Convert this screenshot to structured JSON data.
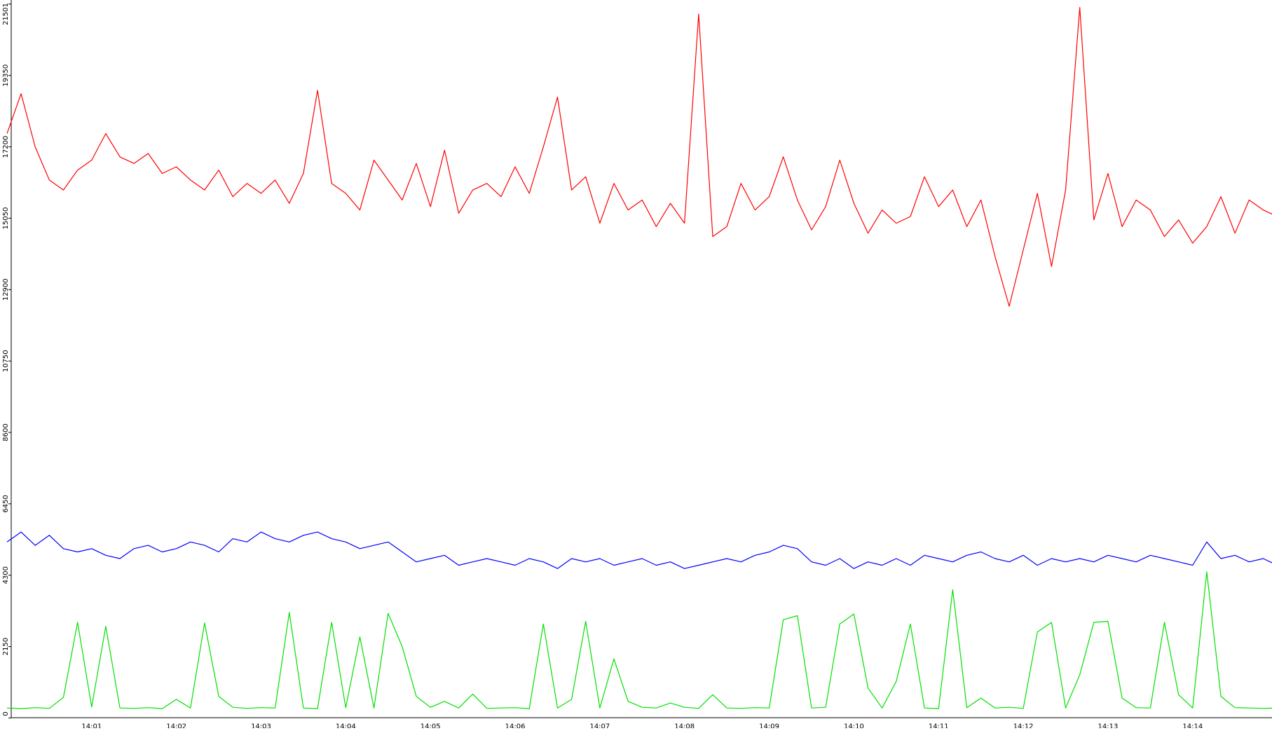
{
  "chart_data": {
    "type": "line",
    "categories": [
      null,
      null,
      null,
      null,
      null,
      null,
      "14:01",
      null,
      null,
      null,
      null,
      null,
      "14:02",
      null,
      null,
      null,
      null,
      null,
      "14:03",
      null,
      null,
      null,
      null,
      null,
      "14:04",
      null,
      null,
      null,
      null,
      null,
      "14:05",
      null,
      null,
      null,
      null,
      null,
      "14:06",
      null,
      null,
      null,
      null,
      null,
      "14:07",
      null,
      null,
      null,
      null,
      null,
      "14:08",
      null,
      null,
      null,
      null,
      null,
      "14:09",
      null,
      null,
      null,
      null,
      null,
      "14:10",
      null,
      null,
      null,
      null,
      null,
      "14:11",
      null,
      null,
      null,
      null,
      null,
      "14:12",
      null,
      null,
      null,
      null,
      null,
      "14:13",
      null,
      null,
      null,
      null,
      null,
      "14:14",
      null,
      null,
      null,
      null,
      null,
      null
    ],
    "series": [
      {
        "color": "#ff0000",
        "values": [
          17600,
          18800,
          17200,
          16200,
          15900,
          16500,
          16800,
          17600,
          16900,
          16700,
          17000,
          16400,
          16600,
          16200,
          15900,
          16500,
          15700,
          16100,
          15800,
          16200,
          15500,
          16400,
          18900,
          16100,
          15800,
          15300,
          16800,
          16200,
          15600,
          16700,
          15400,
          17100,
          15200,
          15900,
          16100,
          15700,
          16600,
          15800,
          17200,
          18700,
          15900,
          16300,
          14900,
          16100,
          15300,
          15600,
          14800,
          15500,
          14900,
          21200,
          14500,
          14800,
          16100,
          15300,
          15700,
          16900,
          15600,
          14700,
          15400,
          16800,
          15500,
          14600,
          15300,
          14900,
          15100,
          16300,
          15400,
          15900,
          14800,
          15600,
          13900,
          12400,
          14100,
          15800,
          13600,
          15900,
          21400,
          15000,
          16400,
          14800,
          15600,
          15300,
          14500,
          15000,
          14300,
          14800,
          15700,
          14600,
          15600,
          15300,
          15100
        ]
      },
      {
        "color": "#0000ff",
        "values": [
          5300,
          5600,
          5200,
          5500,
          5100,
          5000,
          5100,
          4900,
          4800,
          5100,
          5200,
          5000,
          5100,
          5300,
          5200,
          5000,
          5400,
          5300,
          5600,
          5400,
          5300,
          5500,
          5600,
          5400,
          5300,
          5100,
          5200,
          5300,
          5000,
          4700,
          4800,
          4900,
          4600,
          4700,
          4800,
          4700,
          4600,
          4800,
          4700,
          4500,
          4800,
          4700,
          4800,
          4600,
          4700,
          4800,
          4600,
          4700,
          4500,
          4600,
          4700,
          4800,
          4700,
          4900,
          5000,
          5200,
          5100,
          4700,
          4600,
          4800,
          4500,
          4700,
          4600,
          4800,
          4600,
          4900,
          4800,
          4700,
          4900,
          5000,
          4800,
          4700,
          4900,
          4600,
          4800,
          4700,
          4800,
          4700,
          4900,
          4800,
          4700,
          4900,
          4800,
          4700,
          4600,
          5300,
          4800,
          4900,
          4700,
          4800,
          4600
        ]
      },
      {
        "color": "#00e000",
        "values": [
          300,
          280,
          310,
          290,
          620,
          2880,
          330,
          2760,
          300,
          290,
          310,
          280,
          560,
          300,
          2860,
          650,
          320,
          290,
          310,
          300,
          3180,
          300,
          280,
          2880,
          310,
          2440,
          300,
          3150,
          2150,
          650,
          320,
          500,
          300,
          720,
          290,
          300,
          310,
          280,
          2830,
          300,
          560,
          2910,
          300,
          1780,
          500,
          320,
          300,
          450,
          320,
          290,
          700,
          300,
          290,
          310,
          300,
          2960,
          3080,
          300,
          320,
          2830,
          3130,
          900,
          300,
          1100,
          2830,
          300,
          280,
          3860,
          310,
          600,
          300,
          320,
          290,
          2590,
          2880,
          300,
          1300,
          2880,
          2910,
          600,
          310,
          300,
          2880,
          700,
          300,
          4400,
          650,
          310,
          300,
          290,
          300
        ]
      }
    ],
    "ylim": [
      0,
      21501
    ],
    "yticks": [
      0,
      2150,
      4300,
      6450,
      8600,
      10750,
      12900,
      15050,
      17200,
      19350,
      21501
    ]
  }
}
